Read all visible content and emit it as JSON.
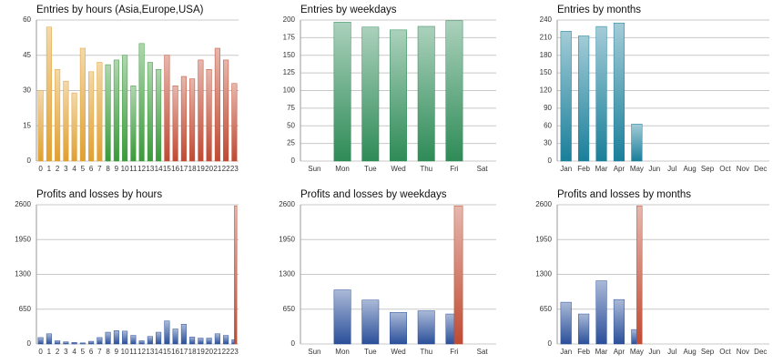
{
  "chart_data": [
    {
      "type": "bar",
      "title": "Entries by hours (Asia,Europe,USA)",
      "categories": [
        "0",
        "1",
        "2",
        "3",
        "4",
        "5",
        "6",
        "7",
        "8",
        "9",
        "10",
        "11",
        "12",
        "13",
        "14",
        "15",
        "16",
        "17",
        "18",
        "19",
        "20",
        "21",
        "22",
        "23"
      ],
      "series": [
        {
          "colors": [
            "#e0a030",
            "#e0a030",
            "#e0a030",
            "#e0a030",
            "#e0a030",
            "#e0a030",
            "#e0a030",
            "#e0a030",
            "#3a9a3a",
            "#3a9a3a",
            "#3a9a3a",
            "#3a9a3a",
            "#3a9a3a",
            "#3a9a3a",
            "#3a9a3a",
            "#c04a32",
            "#c04a32",
            "#c04a32",
            "#c04a32",
            "#c04a32",
            "#c04a32",
            "#c04a32",
            "#c04a32",
            "#c04a32"
          ],
          "values": [
            30,
            57,
            39,
            34,
            29,
            48,
            38,
            42,
            41,
            43,
            45,
            32,
            50,
            42,
            39,
            45,
            32,
            36,
            35,
            43,
            39,
            48,
            43,
            33
          ]
        }
      ],
      "ylim": [
        0,
        60
      ],
      "yticks": [
        0,
        15,
        30,
        45,
        60
      ],
      "grid": true
    },
    {
      "type": "bar",
      "title": "Entries by weekdays",
      "categories": [
        "Sun",
        "Mon",
        "Tue",
        "Wed",
        "Thu",
        "Fri",
        "Sat"
      ],
      "series": [
        {
          "color": "#2e8b57",
          "values": [
            0,
            197,
            190,
            186,
            191,
            199,
            0
          ]
        }
      ],
      "ylim": [
        0,
        200
      ],
      "yticks": [
        0,
        25,
        50,
        75,
        100,
        125,
        150,
        175,
        200
      ],
      "grid": true
    },
    {
      "type": "bar",
      "title": "Entries by months",
      "categories": [
        "Jan",
        "Feb",
        "Mar",
        "Apr",
        "May",
        "Jun",
        "Jul",
        "Aug",
        "Sep",
        "Oct",
        "Nov",
        "Dec"
      ],
      "series": [
        {
          "color": "#1a7f9a",
          "values": [
            221,
            213,
            229,
            235,
            63,
            0,
            0,
            0,
            0,
            0,
            0,
            0
          ]
        }
      ],
      "ylim": [
        0,
        240
      ],
      "yticks": [
        0,
        30,
        60,
        90,
        120,
        150,
        180,
        210,
        240
      ],
      "grid": true
    },
    {
      "type": "bar",
      "title": "Profits and losses by hours",
      "categories": [
        "0",
        "1",
        "2",
        "3",
        "4",
        "5",
        "6",
        "7",
        "8",
        "9",
        "10",
        "11",
        "12",
        "13",
        "14",
        "15",
        "16",
        "17",
        "18",
        "19",
        "20",
        "21",
        "22",
        "23"
      ],
      "series": [
        {
          "color": "#2a4f9a",
          "values": [
            120,
            190,
            60,
            40,
            30,
            20,
            50,
            120,
            220,
            250,
            240,
            160,
            60,
            140,
            220,
            430,
            280,
            370,
            130,
            110,
            110,
            190,
            160,
            80
          ]
        },
        {
          "color": "#c04a32",
          "values": [
            null,
            null,
            null,
            null,
            null,
            null,
            null,
            null,
            null,
            null,
            null,
            null,
            null,
            null,
            null,
            null,
            null,
            null,
            null,
            null,
            null,
            null,
            null,
            2580
          ]
        }
      ],
      "ylim": [
        0,
        2600
      ],
      "yticks": [
        0,
        650,
        1300,
        1950,
        2600
      ],
      "grid": true
    },
    {
      "type": "bar",
      "title": "Profits and losses by weekdays",
      "categories": [
        "Sun",
        "Mon",
        "Tue",
        "Wed",
        "Thu",
        "Fri",
        "Sat"
      ],
      "series": [
        {
          "color": "#2a4f9a",
          "values": [
            0,
            1010,
            820,
            590,
            620,
            560,
            0
          ]
        },
        {
          "color": "#c04a32",
          "values": [
            null,
            null,
            null,
            null,
            null,
            2580,
            null
          ]
        }
      ],
      "ylim": [
        0,
        2600
      ],
      "yticks": [
        0,
        650,
        1300,
        1950,
        2600
      ],
      "grid": true
    },
    {
      "type": "bar",
      "title": "Profits and losses by months",
      "categories": [
        "Jan",
        "Feb",
        "Mar",
        "Apr",
        "May",
        "Jun",
        "Jul",
        "Aug",
        "Sep",
        "Oct",
        "Nov",
        "Dec"
      ],
      "series": [
        {
          "color": "#2a4f9a",
          "values": [
            780,
            560,
            1180,
            830,
            270,
            0,
            0,
            0,
            0,
            0,
            0,
            0
          ]
        },
        {
          "color": "#c04a32",
          "values": [
            null,
            null,
            null,
            null,
            2580,
            null,
            null,
            null,
            null,
            null,
            null,
            null
          ]
        }
      ],
      "ylim": [
        0,
        2600
      ],
      "yticks": [
        0,
        650,
        1300,
        1950,
        2600
      ],
      "grid": true
    }
  ]
}
